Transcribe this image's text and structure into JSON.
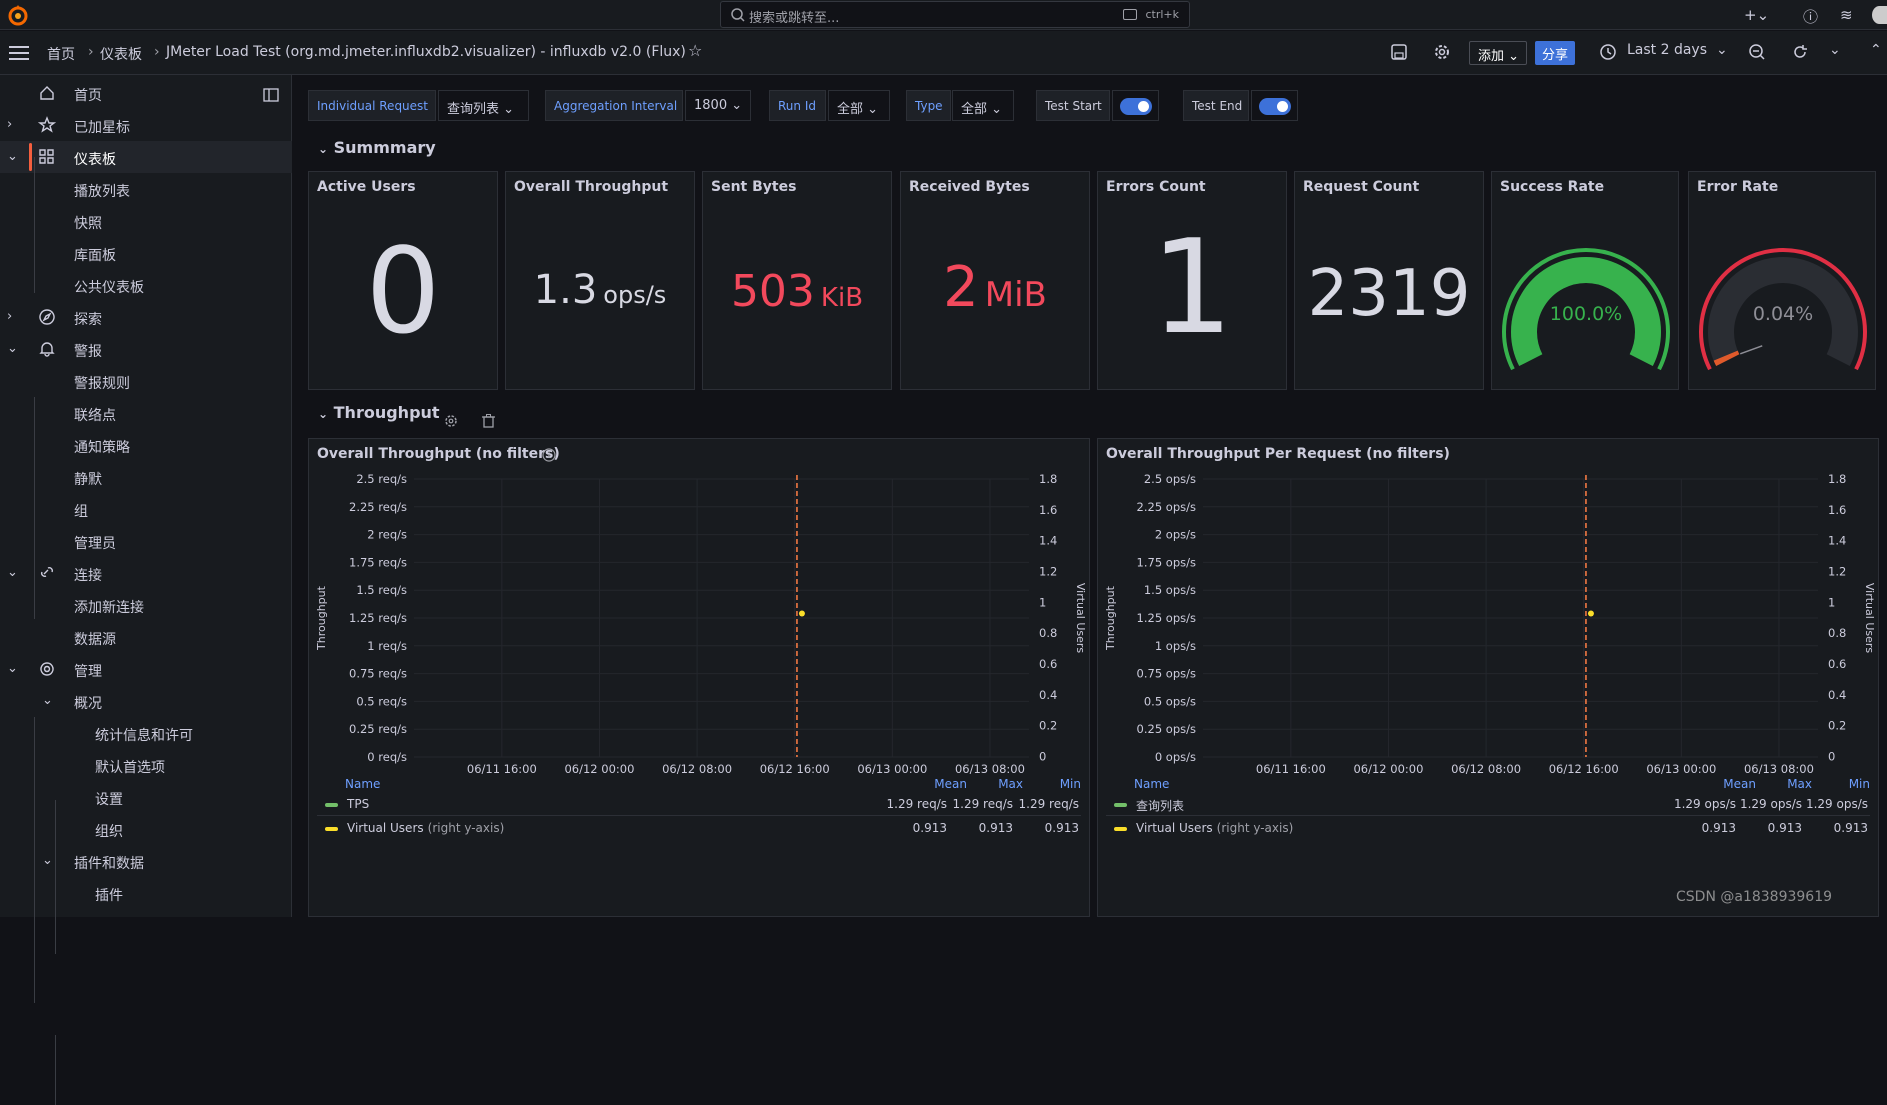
{
  "topbar": {
    "search_placeholder": "搜索或跳转至...",
    "shortcut": "ctrl+k"
  },
  "breadcrumb": {
    "home": "首页",
    "dashboards": "仪表板",
    "title": "JMeter Load Test (org.md.jmeter.influxdb2.visualizer) - influxdb v2.0 (Flux)"
  },
  "toolbar": {
    "add_label": "添加",
    "share_label": "分享",
    "time_range": "Last 2 days"
  },
  "sidebar": {
    "items": [
      {
        "label": "首页",
        "depth": 0,
        "icon": "home-icon",
        "chev": ""
      },
      {
        "label": "已加星标",
        "depth": 0,
        "icon": "star-icon",
        "chev": "right"
      },
      {
        "label": "仪表板",
        "depth": 0,
        "icon": "apps-icon",
        "chev": "down",
        "active": true
      },
      {
        "label": "播放列表",
        "depth": 1
      },
      {
        "label": "快照",
        "depth": 1
      },
      {
        "label": "库面板",
        "depth": 1
      },
      {
        "label": "公共仪表板",
        "depth": 1
      },
      {
        "label": "探索",
        "depth": 0,
        "icon": "compass-icon",
        "chev": "right"
      },
      {
        "label": "警报",
        "depth": 0,
        "icon": "bell-icon",
        "chev": "down"
      },
      {
        "label": "警报规则",
        "depth": 1
      },
      {
        "label": "联络点",
        "depth": 1
      },
      {
        "label": "通知策略",
        "depth": 1
      },
      {
        "label": "静默",
        "depth": 1
      },
      {
        "label": "组",
        "depth": 1
      },
      {
        "label": "管理员",
        "depth": 1
      },
      {
        "label": "连接",
        "depth": 0,
        "icon": "link-icon",
        "chev": "down"
      },
      {
        "label": "添加新连接",
        "depth": 1
      },
      {
        "label": "数据源",
        "depth": 1
      },
      {
        "label": "管理",
        "depth": 0,
        "icon": "cog-icon",
        "chev": "down"
      },
      {
        "label": "概况",
        "depth": 1,
        "chev": "down"
      },
      {
        "label": "统计信息和许可",
        "depth": 2
      },
      {
        "label": "默认首选项",
        "depth": 2
      },
      {
        "label": "设置",
        "depth": 2
      },
      {
        "label": "组织",
        "depth": 2
      },
      {
        "label": "插件和数据",
        "depth": 1,
        "chev": "down"
      },
      {
        "label": "插件",
        "depth": 2
      }
    ]
  },
  "variables": [
    {
      "label": "Individual Request",
      "value": "查询列表"
    },
    {
      "label": "Aggregation Interval",
      "value": "1800"
    },
    {
      "label": "Run Id",
      "value": "全部"
    },
    {
      "label": "Type",
      "value": "全部"
    },
    {
      "label": "Test Start",
      "toggle": true
    },
    {
      "label": "Test End",
      "toggle": true
    }
  ],
  "rows": {
    "summary": "Summmary",
    "throughput": "Throughput"
  },
  "stats": [
    {
      "title": "Active Users",
      "value": "0",
      "unit": "",
      "color": "#d8d9e3"
    },
    {
      "title": "Overall Throughput",
      "value": "1.3",
      "unit": "ops/s",
      "color": "#d8d9e3"
    },
    {
      "title": "Sent Bytes",
      "value": "503",
      "unit": "KiB",
      "color": "#f2495c"
    },
    {
      "title": "Received Bytes",
      "value": "2",
      "unit": "MiB",
      "color": "#f2495c"
    },
    {
      "title": "Errors Count",
      "value": "1",
      "unit": "",
      "color": "#d8d9e3"
    },
    {
      "title": "Request Count",
      "value": "2319",
      "unit": "",
      "color": "#d8d9e3"
    }
  ],
  "gauges": [
    {
      "title": "Success Rate",
      "label": "100.0%",
      "percent": 100,
      "color": "#37b24d",
      "text_color": "#37b24d"
    },
    {
      "title": "Error Rate",
      "label": "0.04%",
      "percent": 0.04,
      "color": "#e05a2b",
      "text_color": "#8e8e96"
    }
  ],
  "chart_data": [
    {
      "type": "line",
      "title": "Overall Throughput (no filters)",
      "ylabel": "Throughput",
      "y2label": "Virtual Users",
      "y_ticks": [
        "2.5 req/s",
        "2.25 req/s",
        "2 req/s",
        "1.75 req/s",
        "1.5 req/s",
        "1.25 req/s",
        "1 req/s",
        "0.75 req/s",
        "0.5 req/s",
        "0.25 req/s",
        "0 req/s"
      ],
      "y2_ticks": [
        "1.8",
        "1.6",
        "1.4",
        "1.2",
        "1",
        "0.8",
        "0.6",
        "0.4",
        "0.2",
        "0"
      ],
      "x_ticks": [
        "06/11 16:00",
        "06/12 00:00",
        "06/12 08:00",
        "06/12 16:00",
        "06/13 00:00",
        "06/13 08:00"
      ],
      "ylim": [
        0,
        2.5
      ],
      "point_y": 1.29,
      "legend_headers": [
        "Name",
        "Mean",
        "Max",
        "Min"
      ],
      "series": [
        {
          "name": "TPS",
          "suffix": "",
          "color": "#73bf69",
          "mean": "1.29 req/s",
          "max": "1.29 req/s",
          "min": "1.29 req/s"
        },
        {
          "name": "Virtual Users",
          "suffix": "(right y-axis)",
          "color": "#fade2a",
          "mean": "0.913",
          "max": "0.913",
          "min": "0.913"
        }
      ]
    },
    {
      "type": "line",
      "title": "Overall Throughput Per Request (no filters)",
      "ylabel": "Throughput",
      "y2label": "Virtual Users",
      "y_ticks": [
        "2.5 ops/s",
        "2.25 ops/s",
        "2 ops/s",
        "1.75 ops/s",
        "1.5 ops/s",
        "1.25 ops/s",
        "1 ops/s",
        "0.75 ops/s",
        "0.5 ops/s",
        "0.25 ops/s",
        "0 ops/s"
      ],
      "y2_ticks": [
        "1.8",
        "1.6",
        "1.4",
        "1.2",
        "1",
        "0.8",
        "0.6",
        "0.4",
        "0.2",
        "0"
      ],
      "x_ticks": [
        "06/11 16:00",
        "06/12 00:00",
        "06/12 08:00",
        "06/12 16:00",
        "06/13 00:00",
        "06/13 08:00"
      ],
      "ylim": [
        0,
        2.5
      ],
      "point_y": 1.29,
      "legend_headers": [
        "Name",
        "Mean",
        "Max",
        "Min"
      ],
      "series": [
        {
          "name": "查询列表",
          "suffix": "",
          "color": "#73bf69",
          "mean": "1.29 ops/s",
          "max": "1.29 ops/s",
          "min": "1.29 ops/s"
        },
        {
          "name": "Virtual Users",
          "suffix": "(right y-axis)",
          "color": "#fade2a",
          "mean": "0.913",
          "max": "0.913",
          "min": "0.913"
        }
      ]
    }
  ],
  "watermark": "CSDN @a1838939619"
}
